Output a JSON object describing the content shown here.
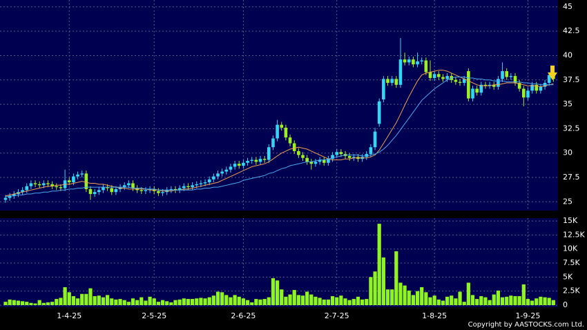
{
  "chart_data": {
    "type": "candlestick",
    "categories": [
      null,
      null,
      null,
      null,
      null,
      null,
      null,
      null,
      null,
      null,
      null,
      null,
      null,
      null,
      null,
      "1-4-25",
      null,
      null,
      null,
      null,
      null,
      null,
      null,
      null,
      null,
      null,
      null,
      null,
      null,
      null,
      null,
      null,
      null,
      null,
      null,
      "2-5-25",
      null,
      null,
      null,
      null,
      null,
      null,
      null,
      null,
      null,
      null,
      null,
      null,
      null,
      null,
      null,
      null,
      null,
      null,
      null,
      null,
      "2-6-25",
      null,
      null,
      null,
      null,
      null,
      null,
      null,
      null,
      null,
      null,
      null,
      null,
      null,
      null,
      null,
      null,
      null,
      null,
      null,
      null,
      null,
      "2-7-25",
      null,
      null,
      null,
      null,
      null,
      null,
      null,
      null,
      null,
      null,
      null,
      null,
      null,
      null,
      null,
      null,
      null,
      null,
      null,
      null,
      null,
      null,
      "1-8-25",
      null,
      null,
      null,
      null,
      null,
      null,
      null,
      null,
      null,
      null,
      null,
      null,
      null,
      null,
      null,
      null,
      null,
      null,
      null,
      null,
      null,
      "1-9-25",
      null,
      null,
      null,
      null,
      null,
      null
    ],
    "open": [
      25.2,
      25.4,
      25.6,
      25.8,
      26.0,
      26.2,
      26.6,
      26.9,
      26.8,
      26.7,
      26.9,
      26.8,
      26.6,
      26.5,
      26.4,
      27.2,
      27.0,
      27.6,
      27.8,
      27.9,
      26.3,
      25.8,
      26.0,
      26.2,
      26.5,
      26.4,
      26.0,
      26.3,
      26.5,
      26.7,
      26.9,
      26.4,
      26.2,
      26.1,
      26.2,
      26.3,
      26.1,
      25.9,
      26.0,
      26.2,
      26.3,
      26.2,
      26.4,
      26.6,
      26.5,
      26.7,
      26.8,
      26.9,
      27.0,
      27.3,
      27.6,
      27.9,
      28.1,
      28.3,
      28.6,
      28.9,
      28.7,
      29.0,
      29.2,
      29.3,
      29.1,
      29.4,
      29.3,
      30.6,
      31.5,
      32.9,
      32.6,
      31.6,
      31.0,
      30.2,
      29.8,
      29.5,
      29.1,
      28.9,
      29.1,
      29.3,
      29.0,
      29.4,
      29.8,
      30.1,
      29.9,
      29.7,
      29.5,
      29.6,
      29.4,
      29.6,
      29.9,
      30.6,
      33.0,
      35.5,
      37.6,
      37.2,
      37.6,
      37.0,
      39.6,
      39.3,
      39.6,
      39.1,
      39.4,
      39.5,
      38.3,
      37.7,
      38.1,
      37.8,
      37.6,
      37.9,
      37.5,
      37.3,
      37.2,
      38.4,
      35.6,
      36.6,
      36.2,
      37.0,
      36.9,
      37.0,
      36.8,
      37.6,
      38.4,
      37.8,
      37.9,
      37.2,
      36.6,
      35.7,
      36.4,
      37.0,
      36.4,
      36.8,
      37.2,
      38.0
    ],
    "high": [
      25.7,
      25.9,
      26.1,
      26.3,
      26.5,
      26.9,
      27.2,
      27.2,
      27.1,
      27.2,
      27.2,
      27.1,
      26.9,
      26.8,
      28.3,
      27.5,
      27.9,
      28.1,
      28.2,
      28.2,
      26.6,
      26.3,
      26.5,
      26.8,
      26.8,
      26.7,
      26.6,
      26.8,
      27.0,
      27.2,
      27.2,
      26.7,
      26.5,
      26.5,
      26.6,
      26.6,
      26.4,
      26.3,
      26.5,
      26.6,
      26.6,
      26.7,
      26.9,
      26.9,
      27.0,
      27.1,
      27.2,
      27.3,
      27.6,
      27.9,
      28.2,
      28.4,
      28.6,
      28.9,
      29.2,
      29.2,
      29.3,
      29.5,
      29.6,
      29.6,
      29.7,
      29.7,
      30.9,
      31.8,
      33.4,
      33.2,
      32.9,
      31.9,
      31.3,
      30.5,
      30.1,
      29.8,
      29.4,
      29.4,
      29.6,
      29.6,
      29.7,
      30.1,
      30.4,
      30.4,
      30.2,
      30.0,
      29.9,
      29.9,
      29.9,
      30.2,
      30.9,
      32.6,
      35.6,
      37.9,
      37.9,
      37.9,
      37.9,
      41.8,
      40.3,
      39.9,
      39.9,
      40.3,
      39.8,
      39.8,
      39.5,
      38.4,
      38.4,
      38.1,
      38.2,
      38.2,
      37.8,
      37.6,
      37.9,
      38.7,
      36.9,
      36.9,
      37.3,
      37.3,
      37.3,
      37.3,
      37.9,
      39.3,
      38.7,
      38.2,
      38.2,
      37.5,
      36.9,
      36.7,
      37.3,
      37.3,
      37.1,
      37.5,
      38.3,
      38.3
    ],
    "low": [
      24.9,
      25.1,
      25.3,
      25.5,
      25.7,
      25.9,
      26.3,
      26.5,
      26.4,
      26.4,
      26.5,
      26.3,
      26.2,
      26.1,
      26.1,
      26.7,
      26.7,
      27.3,
      27.5,
      26.0,
      25.2,
      25.5,
      25.7,
      25.9,
      26.1,
      25.7,
      25.7,
      26.0,
      26.2,
      26.4,
      26.1,
      25.9,
      25.8,
      25.8,
      25.9,
      25.8,
      25.6,
      25.6,
      25.7,
      25.9,
      25.9,
      25.9,
      26.1,
      26.2,
      26.2,
      26.4,
      26.5,
      26.6,
      26.7,
      27.0,
      27.3,
      27.6,
      27.8,
      28.0,
      28.3,
      28.4,
      28.4,
      28.7,
      28.9,
      28.8,
      28.8,
      29.0,
      29.0,
      30.3,
      31.2,
      32.3,
      31.3,
      30.7,
      29.9,
      29.5,
      29.2,
      28.8,
      28.3,
      28.6,
      28.8,
      28.7,
      28.7,
      29.1,
      29.5,
      29.6,
      29.4,
      29.2,
      29.2,
      29.1,
      29.1,
      29.3,
      29.6,
      30.3,
      32.7,
      35.2,
      36.9,
      36.9,
      36.7,
      36.7,
      39.0,
      39.0,
      38.8,
      38.8,
      39.1,
      38.0,
      37.4,
      37.4,
      37.5,
      37.3,
      37.3,
      37.2,
      37.0,
      36.9,
      36.9,
      35.3,
      35.3,
      35.9,
      35.9,
      36.6,
      36.6,
      36.5,
      36.5,
      37.3,
      37.5,
      37.5,
      36.9,
      36.3,
      34.8,
      35.4,
      36.1,
      36.1,
      36.1,
      36.5,
      36.9,
      37.3
    ],
    "close": [
      25.4,
      25.6,
      25.8,
      26.0,
      26.2,
      26.6,
      26.9,
      26.8,
      26.7,
      26.9,
      26.8,
      26.6,
      26.5,
      26.4,
      27.2,
      27.0,
      27.6,
      27.8,
      27.9,
      26.3,
      25.8,
      26.0,
      26.2,
      26.5,
      26.4,
      26.0,
      26.3,
      26.5,
      26.7,
      26.9,
      26.4,
      26.2,
      26.1,
      26.2,
      26.3,
      26.1,
      25.9,
      26.0,
      26.2,
      26.3,
      26.2,
      26.4,
      26.6,
      26.5,
      26.7,
      26.8,
      26.9,
      27.0,
      27.3,
      27.6,
      27.9,
      28.1,
      28.3,
      28.6,
      28.9,
      28.7,
      29.0,
      29.2,
      29.3,
      29.1,
      29.4,
      29.3,
      30.6,
      31.5,
      32.9,
      32.6,
      31.6,
      31.0,
      30.2,
      29.8,
      29.5,
      29.1,
      28.9,
      29.1,
      29.3,
      29.0,
      29.4,
      29.8,
      30.1,
      29.9,
      29.7,
      29.5,
      29.6,
      29.4,
      29.6,
      29.9,
      30.6,
      32.2,
      35.3,
      37.6,
      37.2,
      37.6,
      37.0,
      39.6,
      39.3,
      39.6,
      39.1,
      39.4,
      39.5,
      38.3,
      37.7,
      38.1,
      37.8,
      37.6,
      37.9,
      37.5,
      37.3,
      37.2,
      37.6,
      35.6,
      36.6,
      36.2,
      37.0,
      36.9,
      37.0,
      36.8,
      37.6,
      38.4,
      37.8,
      37.9,
      37.2,
      36.6,
      35.7,
      36.4,
      37.0,
      36.4,
      36.8,
      37.2,
      38.0,
      37.6
    ],
    "up_color": "#33d6f5",
    "down_color": "#9cf21e",
    "series": [
      {
        "color": "#f0a050",
        "values": [
          25.6,
          25.7,
          25.8,
          25.9,
          26.0,
          26.1,
          26.2,
          26.3,
          26.4,
          26.5,
          26.6,
          26.6,
          26.7,
          26.7,
          26.8,
          26.8,
          26.9,
          27.0,
          27.1,
          27.0,
          26.9,
          26.9,
          26.8,
          26.8,
          26.7,
          26.6,
          26.5,
          26.4,
          26.4,
          26.3,
          26.3,
          26.3,
          26.3,
          26.3,
          26.2,
          26.2,
          26.2,
          26.1,
          26.1,
          26.1,
          26.2,
          26.2,
          26.3,
          26.3,
          26.4,
          26.5,
          26.6,
          26.7,
          26.8,
          26.9,
          27.0,
          27.2,
          27.4,
          27.6,
          27.8,
          28.0,
          28.2,
          28.4,
          28.6,
          28.7,
          28.8,
          28.9,
          29.1,
          29.4,
          29.7,
          30.0,
          30.2,
          30.4,
          30.5,
          30.6,
          30.5,
          30.4,
          30.2,
          30.0,
          29.8,
          29.6,
          29.4,
          29.3,
          29.3,
          29.3,
          29.4,
          29.4,
          29.5,
          29.5,
          29.5,
          29.5,
          29.6,
          29.8,
          30.3,
          31.0,
          31.7,
          32.4,
          33.1,
          34.0,
          34.9,
          35.8,
          36.6,
          37.4,
          38.0,
          38.2,
          38.3,
          38.4,
          38.5,
          38.5,
          38.4,
          38.2,
          38.0,
          37.8,
          37.6,
          37.4,
          37.2,
          37.0,
          36.9,
          36.9,
          36.9,
          37.0,
          37.0,
          37.1,
          37.2,
          37.2,
          37.2,
          37.1,
          37.0,
          36.9,
          36.9,
          36.9,
          36.8,
          36.9,
          37.0,
          37.1
        ]
      },
      {
        "color": "#4aa8f0",
        "values": [
          25.5,
          25.6,
          25.6,
          25.7,
          25.7,
          25.8,
          25.8,
          25.9,
          25.9,
          26.0,
          26.0,
          26.1,
          26.1,
          26.2,
          26.2,
          26.3,
          26.3,
          26.4,
          26.4,
          26.5,
          26.5,
          26.5,
          26.5,
          26.5,
          26.5,
          26.5,
          26.5,
          26.5,
          26.5,
          26.5,
          26.4,
          26.4,
          26.4,
          26.3,
          26.3,
          26.3,
          26.2,
          26.2,
          26.2,
          26.2,
          26.2,
          26.2,
          26.2,
          26.2,
          26.2,
          26.3,
          26.3,
          26.4,
          26.4,
          26.5,
          26.5,
          26.6,
          26.7,
          26.8,
          26.9,
          27.0,
          27.2,
          27.3,
          27.4,
          27.5,
          27.6,
          27.7,
          27.9,
          28.0,
          28.2,
          28.4,
          28.5,
          28.7,
          28.8,
          28.9,
          29.0,
          29.1,
          29.1,
          29.2,
          29.3,
          29.3,
          29.4,
          29.5,
          29.6,
          29.7,
          29.8,
          29.8,
          29.8,
          29.8,
          29.7,
          29.7,
          29.8,
          29.9,
          30.1,
          30.4,
          30.8,
          31.3,
          31.8,
          32.4,
          33.0,
          33.6,
          34.2,
          34.8,
          35.4,
          35.8,
          36.2,
          36.6,
          36.9,
          37.2,
          37.5,
          37.7,
          37.8,
          37.8,
          37.8,
          37.7,
          37.7,
          37.6,
          37.6,
          37.5,
          37.5,
          37.4,
          37.4,
          37.4,
          37.3,
          37.3,
          37.3,
          37.3,
          37.2,
          37.2,
          37.1,
          37.1,
          37.0,
          37.0,
          37.0,
          37.0
        ]
      }
    ],
    "ylim": [
      24.1,
      45.7
    ],
    "yticks": [
      25,
      27.5,
      30,
      32.5,
      35,
      37.5,
      40,
      42.5,
      45
    ],
    "grid": true,
    "volume": {
      "type": "bar",
      "color": "#8ef51e",
      "values": [
        600,
        1000,
        900,
        800,
        700,
        600,
        400,
        300,
        900,
        400,
        500,
        600,
        1100,
        1300,
        3200,
        2300,
        1600,
        1200,
        2000,
        2000,
        3000,
        1600,
        1700,
        1400,
        1800,
        1200,
        1000,
        1100,
        900,
        600,
        1200,
        900,
        1400,
        800,
        1500,
        1200,
        600,
        900,
        700,
        500,
        900,
        1000,
        1200,
        1100,
        1100,
        1200,
        1300,
        1200,
        1400,
        1700,
        2400,
        2300,
        1800,
        1400,
        1800,
        1500,
        1200,
        900,
        500,
        1100,
        1000,
        1100,
        1400,
        4800,
        4400,
        2800,
        1500,
        1900,
        2700,
        1800,
        1700,
        2400,
        1900,
        1500,
        1300,
        1000,
        1000,
        1600,
        1400,
        1700,
        1200,
        900,
        1100,
        1500,
        1000,
        1100,
        5000,
        6000,
        14500,
        8500,
        2800,
        2800,
        9600,
        4000,
        3500,
        2600,
        1800,
        2500,
        3200,
        2300,
        1400,
        1700,
        1000,
        800,
        1500,
        1700,
        1200,
        2400,
        600,
        4000,
        1800,
        1100,
        1600,
        1400,
        900,
        1900,
        2600,
        1400,
        1500,
        1700,
        1600,
        1600,
        3700,
        1100,
        800,
        1200,
        1500,
        1400,
        1300,
        900
      ],
      "ylim": [
        0,
        15500
      ],
      "yticks": [
        0,
        {
          "value": 2500,
          "label": "2.5K"
        },
        {
          "value": 5000,
          "label": "5K"
        },
        {
          "value": 7500,
          "label": "7.5K"
        },
        {
          "value": 10000,
          "label": "10K"
        },
        {
          "value": 12500,
          "label": "12.5K"
        },
        {
          "value": 15000,
          "label": "15K"
        }
      ]
    },
    "copyright": "Copyright by AASTOCKS.com Ltd."
  }
}
